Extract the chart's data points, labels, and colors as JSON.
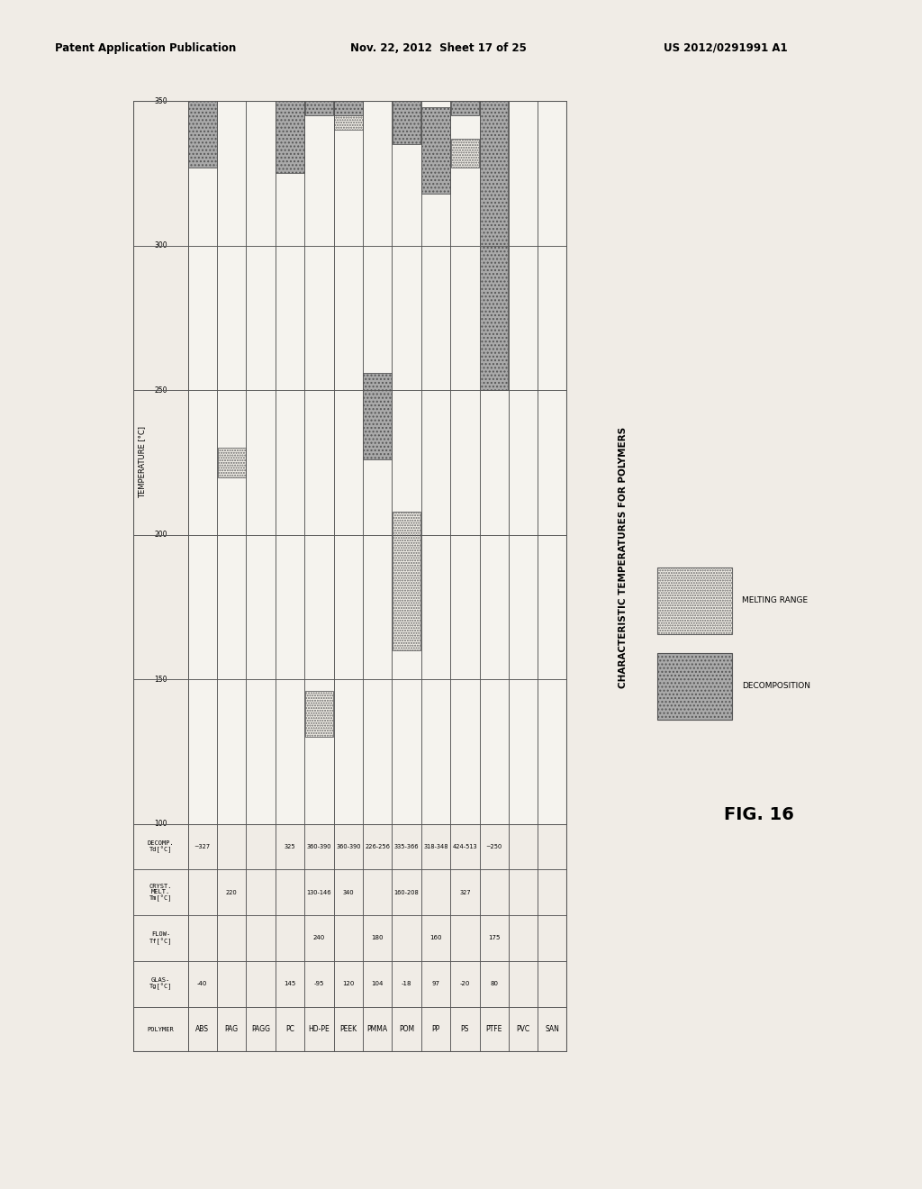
{
  "header_left": "Patent Application Publication",
  "header_mid": "Nov. 22, 2012  Sheet 17 of 25",
  "header_right": "US 2012/0291991 A1",
  "fig_label": "FIG. 16",
  "chart_title": "CHARACTERISTIC TEMPERATURES FOR POLYMERS",
  "legend_melting": "MELTING RANGE",
  "legend_decomp": "DECOMPOSITION",
  "polymers": [
    "ABS",
    "PAG",
    "PAGG",
    "PC",
    "HD-PE",
    "PEEK",
    "PMMA",
    "POM",
    "PP",
    "PS",
    "PTFE",
    "PVC",
    "SAN"
  ],
  "Tg": [
    "-40",
    "",
    "",
    "145",
    "-95",
    "120",
    "104",
    "-18",
    "97",
    "-20",
    "80",
    "",
    ""
  ],
  "Tf": [
    "",
    "",
    "",
    "",
    "240",
    "",
    "180",
    "",
    "160",
    "",
    "175",
    "",
    ""
  ],
  "Tm": [
    "",
    "220",
    "",
    "",
    "130-146",
    "340",
    "",
    "160-208",
    "",
    "327",
    "",
    "",
    ""
  ],
  "Td": [
    "~327",
    "",
    "",
    "325",
    "360-390",
    "360-390",
    "226-256",
    "335-366",
    "318-348",
    "424-513",
    "~250",
    "",
    ""
  ],
  "temp_min": 100,
  "temp_max": 350,
  "temp_ticks": [
    100,
    150,
    200,
    250,
    300,
    350
  ],
  "melting_ranges": [
    [
      null,
      null
    ],
    [
      220,
      220
    ],
    [
      null,
      null
    ],
    [
      null,
      null
    ],
    [
      130,
      146
    ],
    [
      340,
      340
    ],
    [
      null,
      null
    ],
    [
      160,
      208
    ],
    [
      null,
      null
    ],
    [
      327,
      327
    ],
    [
      null,
      null
    ],
    [
      null,
      null
    ],
    [
      null,
      null
    ]
  ],
  "decomp_ranges": [
    [
      327,
      350
    ],
    [
      null,
      null
    ],
    [
      null,
      null
    ],
    [
      325,
      350
    ],
    [
      360,
      390
    ],
    [
      360,
      390
    ],
    [
      226,
      256
    ],
    [
      335,
      366
    ],
    [
      318,
      348
    ],
    [
      424,
      513
    ],
    [
      250,
      350
    ],
    [
      null,
      null
    ],
    [
      null,
      null
    ]
  ],
  "bg_color": "#f0ece6"
}
